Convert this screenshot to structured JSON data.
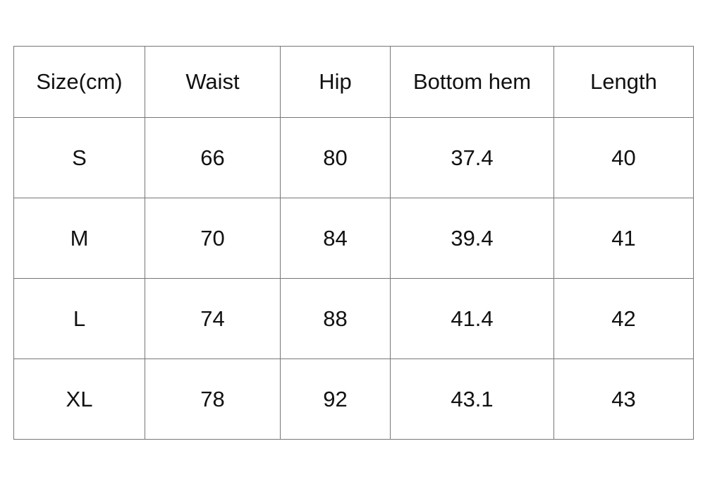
{
  "table": {
    "headers": [
      "Size(cm)",
      "Waist",
      "Hip",
      "Bottom hem",
      "Length"
    ],
    "rows": [
      [
        "S",
        "66",
        "80",
        "37.4",
        "40"
      ],
      [
        "M",
        "70",
        "84",
        "39.4",
        "41"
      ],
      [
        "L",
        "74",
        "88",
        "41.4",
        "42"
      ],
      [
        "XL",
        "78",
        "92",
        "43.1",
        "43"
      ]
    ]
  }
}
